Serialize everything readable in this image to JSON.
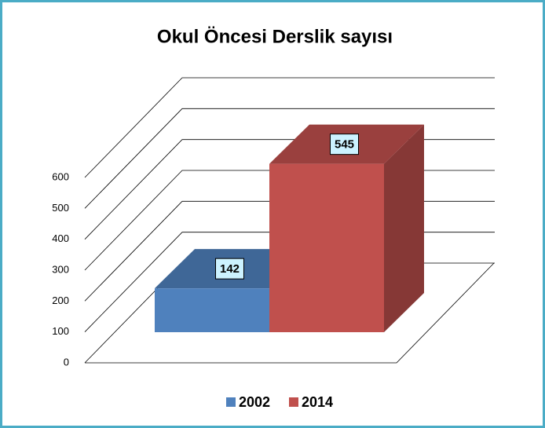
{
  "chart_data": {
    "type": "bar3d",
    "title": "Okul Öncesi Derslik sayısı",
    "series": [
      {
        "name": "2002",
        "color": "#4f81bd",
        "values": [
          142
        ]
      },
      {
        "name": "2014",
        "color": "#c0504d",
        "values": [
          545
        ]
      }
    ],
    "ylim": [
      0,
      600
    ],
    "yticks": [
      0,
      100,
      200,
      300,
      400,
      500,
      600
    ],
    "grid": true,
    "legend": "bottom"
  }
}
